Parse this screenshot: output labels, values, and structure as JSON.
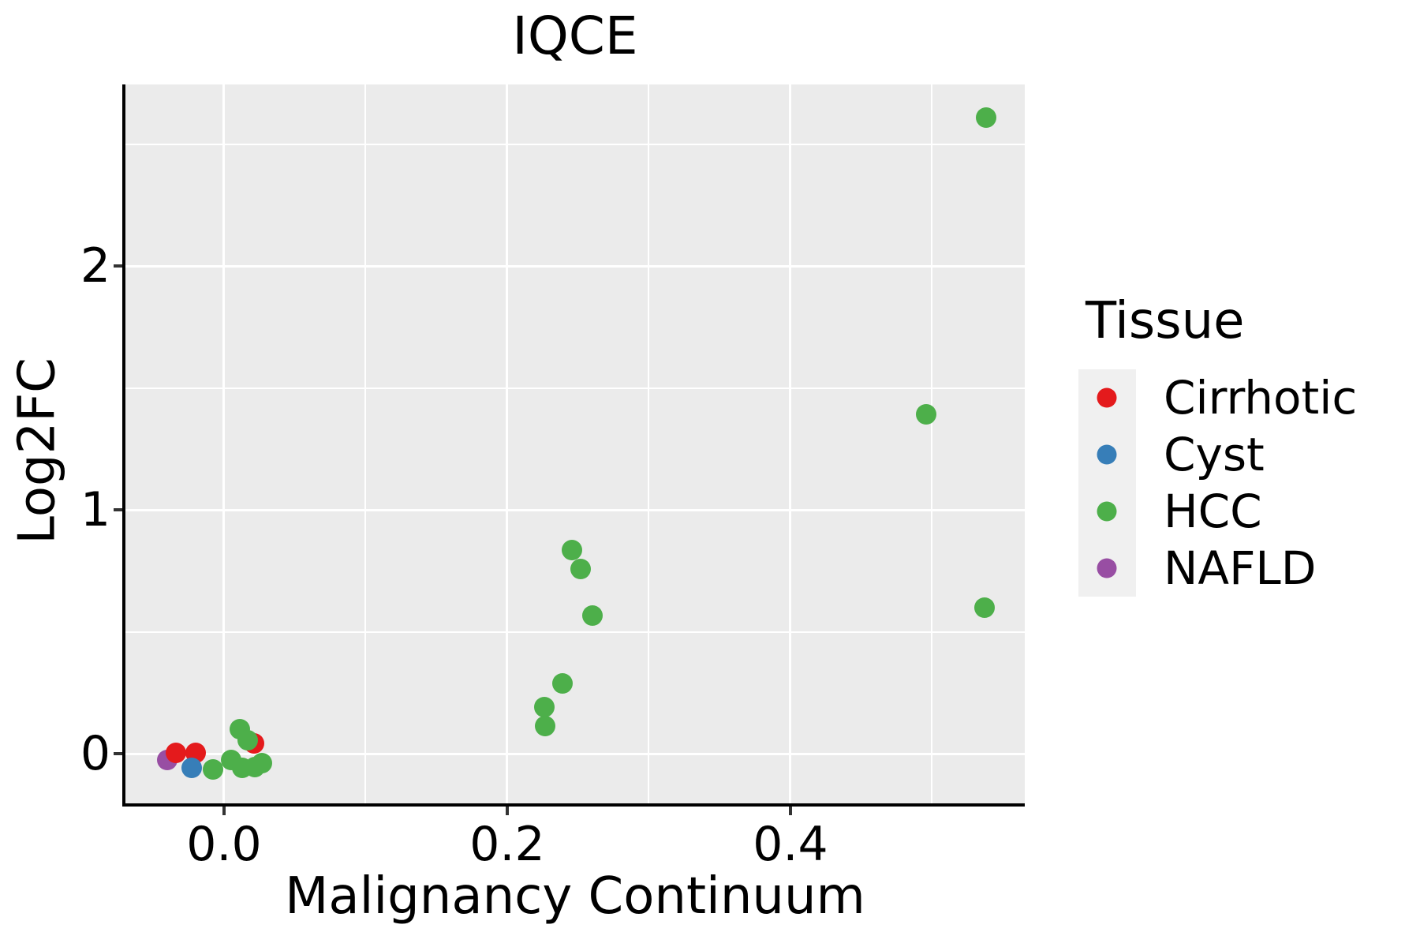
{
  "chart_data": {
    "type": "scatter",
    "title": "IQCE",
    "xlabel": "Malignancy Continuum",
    "ylabel": "Log2FC",
    "xlim": [
      -0.0696,
      0.5655
    ],
    "ylim": [
      -0.21,
      2.745
    ],
    "grid": "major-and-minor, white on gray panel",
    "x_ticks": {
      "major": [
        0.0,
        0.2,
        0.4
      ],
      "minor": [
        0.1,
        0.3,
        0.5
      ],
      "labels": [
        "0.0",
        "0.2",
        "0.4"
      ]
    },
    "y_ticks": {
      "major": [
        0,
        1,
        2
      ],
      "minor": [
        0.5,
        1.5,
        2.5
      ],
      "labels": [
        "0",
        "1",
        "2"
      ]
    },
    "legend": {
      "title": "Tissue",
      "position": "right",
      "entries": [
        {
          "label": "Cirrhotic",
          "color": "#E41A1C"
        },
        {
          "label": "Cyst",
          "color": "#377EB8"
        },
        {
          "label": "HCC",
          "color": "#4DAF4A"
        },
        {
          "label": "NAFLD",
          "color": "#984EA3"
        }
      ]
    },
    "series": [
      {
        "name": "NAFLD",
        "color": "#984EA3",
        "points": [
          [
            -0.04,
            -0.026
          ]
        ]
      },
      {
        "name": "Cirrhotic",
        "color": "#E41A1C",
        "points": [
          [
            -0.034,
            0.005
          ],
          [
            -0.02,
            0.002
          ],
          [
            0.021,
            0.043
          ]
        ]
      },
      {
        "name": "Cyst",
        "color": "#377EB8",
        "points": [
          [
            -0.023,
            -0.058
          ]
        ]
      },
      {
        "name": "HCC",
        "color": "#4DAF4A",
        "points": [
          [
            -0.008,
            -0.065
          ],
          [
            0.005,
            -0.026
          ],
          [
            0.011,
            0.1
          ],
          [
            0.013,
            -0.058
          ],
          [
            0.017,
            0.055
          ],
          [
            0.022,
            -0.055
          ],
          [
            0.027,
            -0.039
          ],
          [
            0.226,
            0.191
          ],
          [
            0.227,
            0.113
          ],
          [
            0.239,
            0.288
          ],
          [
            0.246,
            0.835
          ],
          [
            0.252,
            0.757
          ],
          [
            0.26,
            0.566
          ],
          [
            0.496,
            1.392
          ],
          [
            0.537,
            0.599
          ],
          [
            0.538,
            2.608
          ]
        ]
      }
    ],
    "colors": {
      "panel_bg": "#EBEBEB",
      "grid": "#FFFFFF",
      "axis_line": "#000000",
      "tick_mark": "#333333",
      "legend_key_bg": "#F0F0F0",
      "text": "#000000"
    }
  }
}
